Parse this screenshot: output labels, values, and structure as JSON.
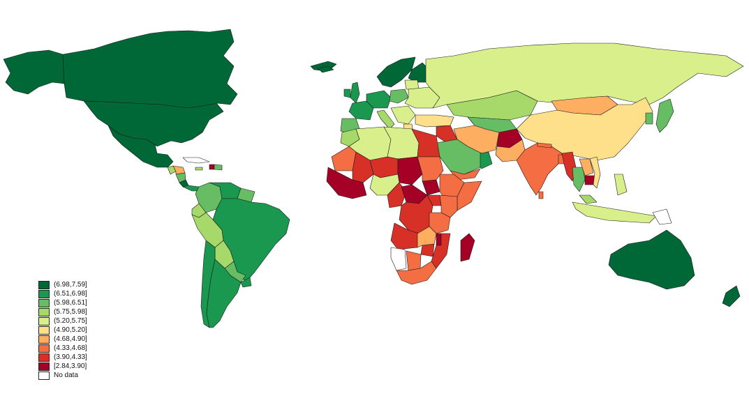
{
  "legend": {
    "items": [
      {
        "label": "(6.98,7.59]",
        "color": "#006837"
      },
      {
        "label": "(6.51,6.98]",
        "color": "#1a9850"
      },
      {
        "label": "(5.98,6.51]",
        "color": "#66bd63"
      },
      {
        "label": "(5.75,5.98]",
        "color": "#a6d96a"
      },
      {
        "label": "(5.20,5.75]",
        "color": "#d9ef8b"
      },
      {
        "label": "(4.90,5.20]",
        "color": "#fee08b"
      },
      {
        "label": "(4.68,4.90]",
        "color": "#fdae61"
      },
      {
        "label": "(4.33,4.68]",
        "color": "#f46d43"
      },
      {
        "label": "(3.90,4.33]",
        "color": "#d73027"
      },
      {
        "label": "[2.84,3.90]",
        "color": "#a50026"
      },
      {
        "label": "No data",
        "color": "#ffffff"
      }
    ]
  },
  "regions": [
    {
      "name": "greenland",
      "cls": 0
    },
    {
      "name": "canada",
      "cls": 0
    },
    {
      "name": "usa",
      "cls": 0
    },
    {
      "name": "alaska",
      "cls": 0
    },
    {
      "name": "mexico",
      "cls": 0
    },
    {
      "name": "guatemala",
      "cls": 3
    },
    {
      "name": "honduras",
      "cls": 6
    },
    {
      "name": "nicaragua",
      "cls": 2
    },
    {
      "name": "costa-rica",
      "cls": 0
    },
    {
      "name": "panama",
      "cls": 1
    },
    {
      "name": "cuba",
      "cls": 10
    },
    {
      "name": "haiti",
      "cls": 9
    },
    {
      "name": "dominican-rep",
      "cls": 2
    },
    {
      "name": "jamaica",
      "cls": 3
    },
    {
      "name": "colombia",
      "cls": 2
    },
    {
      "name": "venezuela",
      "cls": 1
    },
    {
      "name": "guyana",
      "cls": 2
    },
    {
      "name": "ecuador",
      "cls": 3
    },
    {
      "name": "peru",
      "cls": 3
    },
    {
      "name": "brazil",
      "cls": 1
    },
    {
      "name": "bolivia",
      "cls": 3
    },
    {
      "name": "paraguay",
      "cls": 2
    },
    {
      "name": "chile",
      "cls": 1
    },
    {
      "name": "argentina",
      "cls": 1
    },
    {
      "name": "uruguay",
      "cls": 1
    },
    {
      "name": "iceland",
      "cls": 0
    },
    {
      "name": "uk",
      "cls": 1
    },
    {
      "name": "ireland",
      "cls": 1
    },
    {
      "name": "norway-sweden",
      "cls": 0
    },
    {
      "name": "finland",
      "cls": 0
    },
    {
      "name": "france",
      "cls": 1
    },
    {
      "name": "spain-portugal",
      "cls": 2
    },
    {
      "name": "germany-benelux",
      "cls": 1
    },
    {
      "name": "poland",
      "cls": 2
    },
    {
      "name": "baltics",
      "cls": 4
    },
    {
      "name": "belarus-ukraine",
      "cls": 4
    },
    {
      "name": "italy",
      "cls": 3
    },
    {
      "name": "balkans",
      "cls": 4
    },
    {
      "name": "greece",
      "cls": 5
    },
    {
      "name": "turkey",
      "cls": 5
    },
    {
      "name": "russia",
      "cls": 4
    },
    {
      "name": "kazakhstan",
      "cls": 3
    },
    {
      "name": "mongolia",
      "cls": 6
    },
    {
      "name": "china",
      "cls": 5
    },
    {
      "name": "korea",
      "cls": 2
    },
    {
      "name": "japan",
      "cls": 2
    },
    {
      "name": "central-asia",
      "cls": 2
    },
    {
      "name": "iran",
      "cls": 6
    },
    {
      "name": "iraq-syria",
      "cls": 8
    },
    {
      "name": "afghanistan",
      "cls": 9
    },
    {
      "name": "pakistan",
      "cls": 6
    },
    {
      "name": "india",
      "cls": 7
    },
    {
      "name": "nepal",
      "cls": 7
    },
    {
      "name": "bangladesh",
      "cls": 7
    },
    {
      "name": "myanmar",
      "cls": 8
    },
    {
      "name": "thailand",
      "cls": 2
    },
    {
      "name": "laos",
      "cls": 6
    },
    {
      "name": "cambodia",
      "cls": 9
    },
    {
      "name": "vietnam",
      "cls": 5
    },
    {
      "name": "sri-lanka",
      "cls": 7
    },
    {
      "name": "saudi-arabia",
      "cls": 2
    },
    {
      "name": "yemen",
      "cls": 7
    },
    {
      "name": "oman-uae",
      "cls": 1
    },
    {
      "name": "malaysia",
      "cls": 3
    },
    {
      "name": "indonesia",
      "cls": 4
    },
    {
      "name": "philippines",
      "cls": 4
    },
    {
      "name": "papua-new-guinea",
      "cls": 10
    },
    {
      "name": "australia",
      "cls": 0
    },
    {
      "name": "new-zealand",
      "cls": 0
    },
    {
      "name": "morocco",
      "cls": 3
    },
    {
      "name": "algeria",
      "cls": 4
    },
    {
      "name": "libya",
      "cls": 4
    },
    {
      "name": "egypt",
      "cls": 8
    },
    {
      "name": "mauritania",
      "cls": 7
    },
    {
      "name": "mali",
      "cls": 8
    },
    {
      "name": "niger",
      "cls": 8
    },
    {
      "name": "chad",
      "cls": 9
    },
    {
      "name": "sudan",
      "cls": 7
    },
    {
      "name": "south-sudan",
      "cls": 9
    },
    {
      "name": "ethiopia",
      "cls": 7
    },
    {
      "name": "somalia",
      "cls": 7
    },
    {
      "name": "west-africa",
      "cls": 9
    },
    {
      "name": "nigeria",
      "cls": 4
    },
    {
      "name": "cameroon",
      "cls": 8
    },
    {
      "name": "car",
      "cls": 9
    },
    {
      "name": "drc",
      "cls": 8
    },
    {
      "name": "kenya",
      "cls": 7
    },
    {
      "name": "tanzania",
      "cls": 7
    },
    {
      "name": "uganda",
      "cls": 8
    },
    {
      "name": "angola",
      "cls": 8
    },
    {
      "name": "zambia",
      "cls": 6
    },
    {
      "name": "zimbabwe",
      "cls": 8
    },
    {
      "name": "mozambique",
      "cls": 8
    },
    {
      "name": "malawi",
      "cls": 9
    },
    {
      "name": "namibia",
      "cls": 10
    },
    {
      "name": "botswana",
      "cls": 7
    },
    {
      "name": "south-africa",
      "cls": 7
    },
    {
      "name": "madagascar",
      "cls": 9
    }
  ]
}
